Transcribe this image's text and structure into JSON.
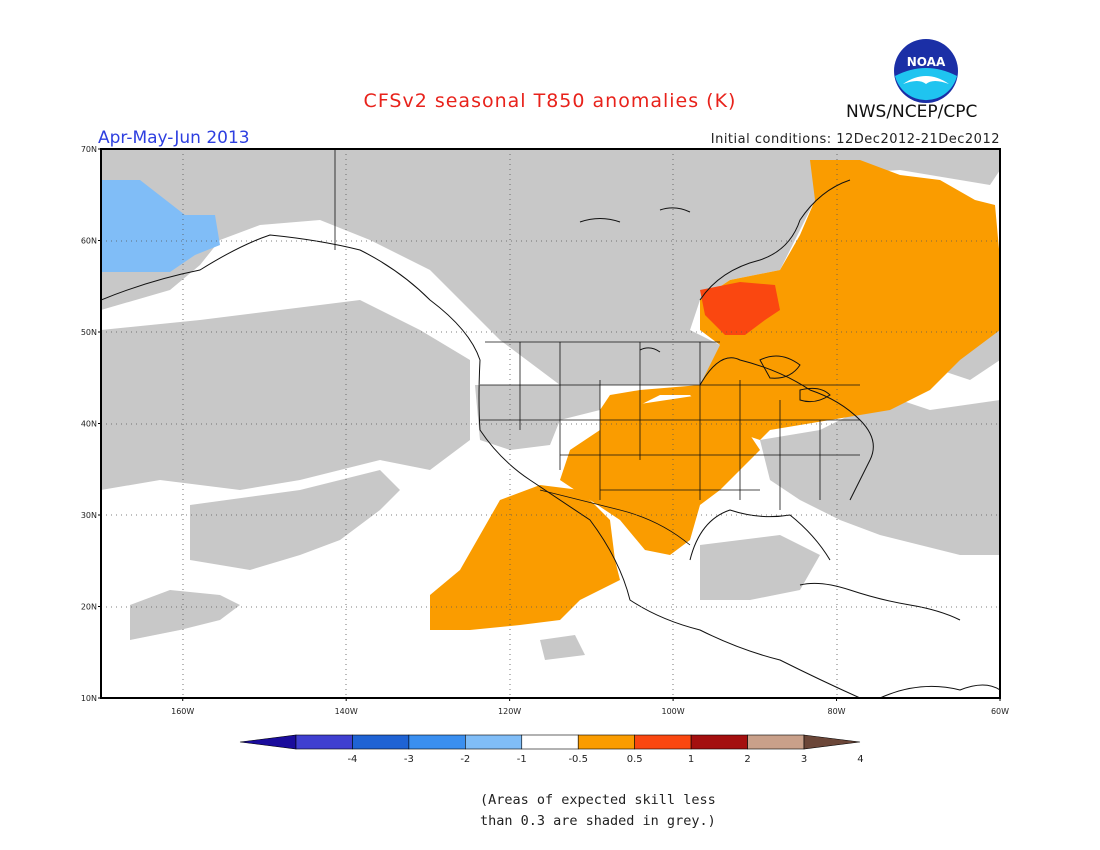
{
  "header": {
    "title": "CFSv2 seasonal T850 anomalies (K)",
    "season": "Apr-May-Jun 2013",
    "initial_conditions": "Initial conditions: 12Dec2012-21Dec2012",
    "agency": "NWS/NCEP/CPC",
    "logo_text": "NOAA"
  },
  "map": {
    "lat_ticks": [
      "70N",
      "60N",
      "50N",
      "40N",
      "30N",
      "20N",
      "10N"
    ],
    "lon_ticks": [
      "160W",
      "140W",
      "120W",
      "100W",
      "80W",
      "60W"
    ],
    "lat_range": [
      10,
      70
    ],
    "lon_range": [
      -170,
      -60
    ],
    "grid": true
  },
  "colorbar": {
    "labels": [
      "-4",
      "-3",
      "-2",
      "-1",
      "-0.5",
      "0.5",
      "1",
      "2",
      "3",
      "4"
    ],
    "colors": [
      "#1a0c9c",
      "#3f3fd0",
      "#1f63d4",
      "#3a8ff0",
      "#80bdf7",
      "#ffffff",
      "#fa9c00",
      "#fa4710",
      "#a40f0f",
      "#c9a08a",
      "#6b4638"
    ]
  },
  "legend_note": {
    "line1": "(Areas of expected skill less",
    "line2": "than 0.3 are shaded in grey.)"
  }
}
